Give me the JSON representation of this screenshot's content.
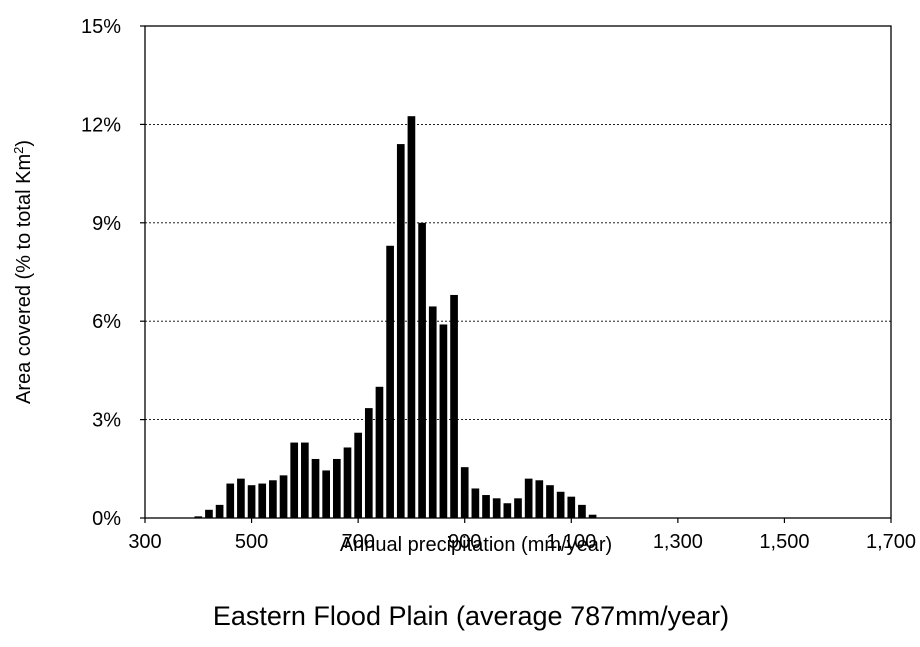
{
  "chart_data": {
    "type": "bar",
    "caption": "Eastern Flood Plain (average 787mm/year)",
    "xlabel": "Annual precipitation (mm/year)",
    "ylabel": "Area covered (% to total Km",
    "ylabel_sup": "2",
    "ylabel_close": ")",
    "xlim": [
      300,
      1700
    ],
    "ylim": [
      0,
      15
    ],
    "x_ticks": [
      "300",
      "500",
      "700",
      "900",
      "1,100",
      "1,300",
      "1,500",
      "1,700"
    ],
    "y_ticks": [
      "0%",
      "3%",
      "6%",
      "9%",
      "12%",
      "15%"
    ],
    "grid": "horizontal dashed",
    "bar_color": "#000000",
    "series": [
      {
        "x": [
          400,
          420,
          440,
          460,
          480,
          500,
          520,
          540,
          560,
          580,
          600,
          620,
          640,
          660,
          680,
          700,
          720,
          740,
          760,
          780,
          800,
          820,
          840,
          860,
          880,
          900,
          920,
          940,
          960,
          980,
          1000,
          1020,
          1040,
          1060,
          1080,
          1100,
          1120,
          1140
        ],
        "values": [
          0.05,
          0.25,
          0.4,
          1.05,
          1.2,
          1.0,
          1.05,
          1.15,
          1.3,
          2.3,
          2.3,
          1.8,
          1.45,
          1.8,
          2.15,
          2.6,
          3.35,
          4.0,
          8.3,
          11.4,
          12.25,
          9.0,
          6.45,
          5.9,
          6.8,
          1.55,
          0.9,
          0.7,
          0.6,
          0.45,
          0.6,
          1.2,
          1.15,
          1.0,
          0.8,
          0.65,
          0.4,
          0.1
        ]
      }
    ]
  }
}
